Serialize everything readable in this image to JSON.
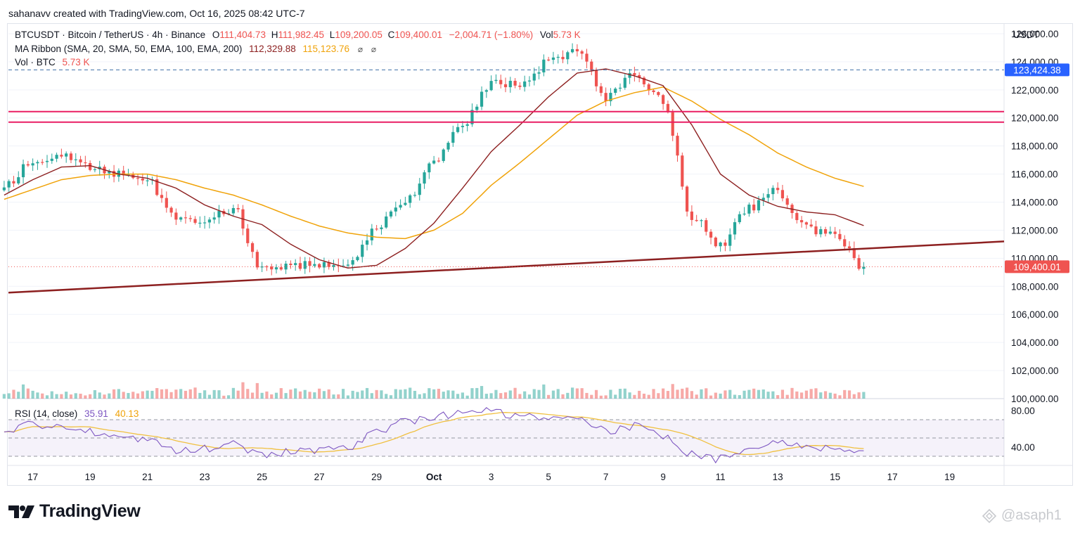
{
  "header": {
    "credit": "sahanavv created with TradingView.com, Oct 16, 2025 08:42 UTC-7"
  },
  "legend": {
    "symbol": "BTCUSDT · Bitcoin / TetherUS · 4h · Binance",
    "o_label": "O",
    "o_value": "111,404.73",
    "h_label": "H",
    "h_value": "111,982.45",
    "l_label": "L",
    "l_value": "109,200.05",
    "c_label": "C",
    "c_value": "109,400.01",
    "change": "−2,004.71 (−1.80%)",
    "vol_label": "Vol",
    "vol_value": "5.73 K",
    "ma_label": "MA Ribbon (SMA, 20, SMA, 50, EMA, 100, EMA, 200)",
    "ma_value_1": "112,329.88",
    "ma_value_2": "115,123.76",
    "vol_line_label": "Vol · BTC",
    "vol_line_value": "5.73 K",
    "rsi_label": "RSI (14, close)",
    "rsi_value": "35.91",
    "rsi_ma_value": "40.13"
  },
  "colors": {
    "up": "#26a69a",
    "down": "#ef5350",
    "ma20": "#8d2020",
    "ma50": "#f0a30a",
    "trendline": "#8d2020",
    "resistance": "#e91e63",
    "dashed_level": "#2962ff",
    "rsi": "#7e57c2",
    "rsi_ma": "#f0c040",
    "label_blue": "#2962ff",
    "label_red": "#ef5350"
  },
  "axis": {
    "currency": "USDT",
    "price_ticks": [
      "126,000.00",
      "124,000.00",
      "122,000.00",
      "120,000.00",
      "118,000.00",
      "116,000.00",
      "114,000.00",
      "112,000.00",
      "110,000.00",
      "108,000.00",
      "106,000.00",
      "104,000.00",
      "102,000.00",
      "100,000.00"
    ],
    "rsi_ticks": [
      "80.00",
      "40.00"
    ],
    "time_ticks": [
      "17",
      "19",
      "21",
      "23",
      "25",
      "27",
      "29",
      "Oct",
      "3",
      "5",
      "7",
      "9",
      "11",
      "13",
      "15",
      "17",
      "19"
    ],
    "level_label": "123,424.38",
    "last_price_label": "109,400.01"
  },
  "chart_data": {
    "type": "candlestick",
    "symbol": "BTCUSDT",
    "interval": "4h",
    "ylim": [
      100000,
      126700
    ],
    "last_close": 109400.01,
    "levels": {
      "dashed": 123424.38,
      "resistance_upper": 120450,
      "resistance_lower": 119700
    },
    "trendline": {
      "start_price": 107550,
      "end_price": 111200
    },
    "rsi_ylim": [
      20,
      90
    ],
    "rsi_band": [
      30,
      70
    ],
    "anchors": [
      {
        "day": "Sep 16",
        "close": 115000,
        "ma20": 114500,
        "ma50": 114200,
        "rsi": 55
      },
      {
        "day": "Sep 17",
        "close": 117000,
        "ma20": 115600,
        "ma50": 114900,
        "rsi": 65
      },
      {
        "day": "Sep 18",
        "close": 117500,
        "ma20": 116500,
        "ma50": 115600,
        "rsi": 62
      },
      {
        "day": "Sep 19",
        "close": 116500,
        "ma20": 116600,
        "ma50": 115900,
        "rsi": 57
      },
      {
        "day": "Sep 20",
        "close": 115900,
        "ma20": 116000,
        "ma50": 116000,
        "rsi": 52
      },
      {
        "day": "Sep 21",
        "close": 115600,
        "ma20": 115700,
        "ma50": 116000,
        "rsi": 48
      },
      {
        "day": "Sep 22",
        "close": 112700,
        "ma20": 115000,
        "ma50": 115600,
        "rsi": 35
      },
      {
        "day": "Sep 23",
        "close": 112600,
        "ma20": 113800,
        "ma50": 115000,
        "rsi": 38
      },
      {
        "day": "Sep 24",
        "close": 113500,
        "ma20": 113000,
        "ma50": 114500,
        "rsi": 44
      },
      {
        "day": "Sep 25",
        "close": 109200,
        "ma20": 112400,
        "ma50": 113800,
        "rsi": 30
      },
      {
        "day": "Sep 26",
        "close": 109500,
        "ma20": 111000,
        "ma50": 113000,
        "rsi": 35
      },
      {
        "day": "Sep 27",
        "close": 109500,
        "ma20": 109900,
        "ma50": 112300,
        "rsi": 37
      },
      {
        "day": "Sep 28",
        "close": 109500,
        "ma20": 109300,
        "ma50": 111800,
        "rsi": 38
      },
      {
        "day": "Sep 29",
        "close": 112300,
        "ma20": 109500,
        "ma50": 111500,
        "rsi": 58
      },
      {
        "day": "Sep 30",
        "close": 114000,
        "ma20": 110700,
        "ma50": 111400,
        "rsi": 68
      },
      {
        "day": "Oct 1",
        "close": 116800,
        "ma20": 112500,
        "ma50": 112000,
        "rsi": 74
      },
      {
        "day": "Oct 2",
        "close": 119500,
        "ma20": 115000,
        "ma50": 113200,
        "rsi": 76
      },
      {
        "day": "Oct 3",
        "close": 122500,
        "ma20": 117600,
        "ma50": 115200,
        "rsi": 79
      },
      {
        "day": "Oct 4",
        "close": 122400,
        "ma20": 119500,
        "ma50": 116800,
        "rsi": 74
      },
      {
        "day": "Oct 5",
        "close": 124000,
        "ma20": 121500,
        "ma50": 118500,
        "rsi": 74
      },
      {
        "day": "Oct 6",
        "close": 124900,
        "ma20": 123200,
        "ma50": 120200,
        "rsi": 75
      },
      {
        "day": "Oct 7",
        "close": 121500,
        "ma20": 123500,
        "ma50": 121200,
        "rsi": 58
      },
      {
        "day": "Oct 8",
        "close": 123000,
        "ma20": 123000,
        "ma50": 121800,
        "rsi": 63
      },
      {
        "day": "Oct 9",
        "close": 121200,
        "ma20": 122300,
        "ma50": 122200,
        "rsi": 53
      },
      {
        "day": "Oct 10",
        "close": 113000,
        "ma20": 119500,
        "ma50": 121200,
        "rsi": 32
      },
      {
        "day": "Oct 11",
        "close": 111000,
        "ma20": 116000,
        "ma50": 119900,
        "rsi": 27
      },
      {
        "day": "Oct 12",
        "close": 113500,
        "ma20": 114500,
        "ma50": 118800,
        "rsi": 36
      },
      {
        "day": "Oct 13",
        "close": 114800,
        "ma20": 113700,
        "ma50": 117500,
        "rsi": 44
      },
      {
        "day": "Oct 14",
        "close": 112200,
        "ma20": 113300,
        "ma50": 116500,
        "rsi": 40
      },
      {
        "day": "Oct 15",
        "close": 111500,
        "ma20": 113100,
        "ma50": 115700,
        "rsi": 39
      },
      {
        "day": "Oct 16",
        "close": 109400,
        "ma20": 112330,
        "ma50": 115120,
        "rsi": 36
      }
    ]
  },
  "branding": {
    "logo_text": "TradingView",
    "watermark": "@asaph1"
  }
}
